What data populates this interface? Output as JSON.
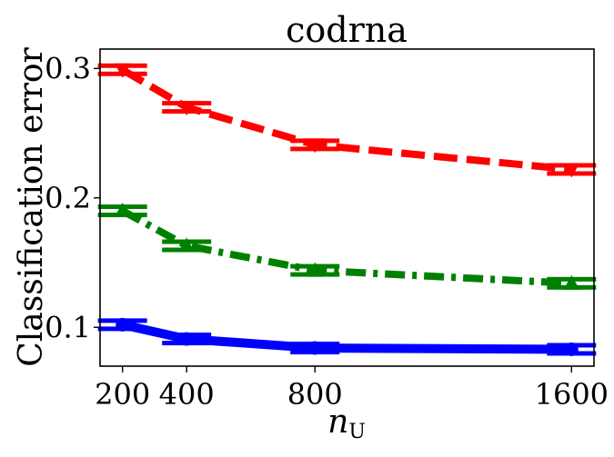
{
  "chart_data": {
    "type": "line",
    "title": "codrna",
    "xlabel_base": "n",
    "xlabel_sub": "U",
    "ylabel": "Classification error",
    "x": [
      200,
      400,
      800,
      1600
    ],
    "x_ticks": [
      200,
      400,
      800,
      1600
    ],
    "x_tick_labels": [
      "200",
      "400",
      "800",
      "1600"
    ],
    "xlim": [
      130,
      1670
    ],
    "y_ticks": [
      0.1,
      0.2,
      0.3
    ],
    "y_tick_labels": [
      "0.1",
      "0.2",
      "0.3"
    ],
    "ylim": [
      0.07,
      0.315
    ],
    "grid": false,
    "legend": "none",
    "series": [
      {
        "color": "#ff0000",
        "line_style": "dashed",
        "marker": "triangle-down",
        "values": [
          0.299,
          0.27,
          0.241,
          0.222
        ]
      },
      {
        "color": "#008000",
        "line_style": "dash-dot",
        "marker": "triangle-up",
        "values": [
          0.19,
          0.163,
          0.144,
          0.134
        ]
      },
      {
        "color": "#0000ff",
        "line_style": "solid",
        "marker": "circle",
        "values": [
          0.102,
          0.091,
          0.084,
          0.083
        ]
      }
    ]
  }
}
